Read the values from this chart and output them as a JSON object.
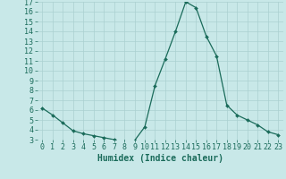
{
  "x": [
    0,
    1,
    2,
    3,
    4,
    5,
    6,
    7,
    8,
    9,
    10,
    11,
    12,
    13,
    14,
    15,
    16,
    17,
    18,
    19,
    20,
    21,
    22,
    23
  ],
  "y": [
    6.2,
    5.5,
    4.7,
    3.9,
    3.6,
    3.4,
    3.2,
    3.0,
    2.8,
    2.9,
    4.3,
    8.5,
    11.2,
    14.0,
    17.0,
    16.4,
    13.5,
    11.5,
    6.5,
    5.5,
    5.0,
    4.5,
    3.8,
    3.5
  ],
  "xlabel": "Humidex (Indice chaleur)",
  "ylim": [
    3,
    17
  ],
  "xlim_min": -0.5,
  "xlim_max": 23.5,
  "yticks": [
    3,
    4,
    5,
    6,
    7,
    8,
    9,
    10,
    11,
    12,
    13,
    14,
    15,
    16,
    17
  ],
  "xticks": [
    0,
    1,
    2,
    3,
    4,
    5,
    6,
    7,
    8,
    9,
    10,
    11,
    12,
    13,
    14,
    15,
    16,
    17,
    18,
    19,
    20,
    21,
    22,
    23
  ],
  "line_color": "#1a6b5a",
  "marker_color": "#1a6b5a",
  "bg_color": "#c8e8e8",
  "grid_color": "#aad0d0",
  "xlabel_color": "#1a6b5a",
  "tick_color": "#1a6b5a",
  "xlabel_fontsize": 7.0,
  "tick_fontsize": 6.0
}
